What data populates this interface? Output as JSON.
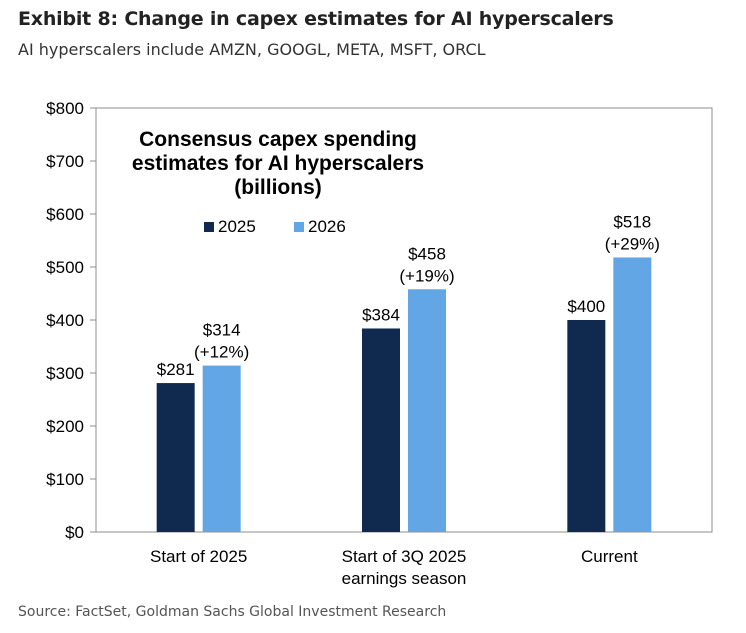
{
  "header": {
    "title": "Exhibit 8: Change in capex estimates for AI hyperscalers",
    "subtitle": "AI hyperscalers include AMZN, GOOGL, META, MSFT, ORCL"
  },
  "footer": {
    "source": "Source: FactSet, Goldman Sachs Global Investment Research"
  },
  "chart_data": {
    "type": "bar",
    "title": "Consensus capex spending estimates for AI hyperscalers (billions)",
    "title_lines": [
      "Consensus capex spending",
      "estimates for AI hyperscalers",
      "(billions)"
    ],
    "categories": [
      "Start of 2025",
      "Start of 3Q 2025 earnings season",
      "Current"
    ],
    "category_lines": [
      [
        "Start of 2025"
      ],
      [
        "Start of 3Q 2025",
        "earnings season"
      ],
      [
        "Current"
      ]
    ],
    "series": [
      {
        "name": "2025",
        "color": "#10294f",
        "values": [
          281,
          384,
          400
        ],
        "labels": [
          [
            "$281"
          ],
          [
            "$384"
          ],
          [
            "$400"
          ]
        ]
      },
      {
        "name": "2026",
        "color": "#63a6e6",
        "values": [
          314,
          458,
          518
        ],
        "labels": [
          [
            "$314",
            "(+12%)"
          ],
          [
            "$458",
            "(+19%)"
          ],
          [
            "$518",
            "(+29%)"
          ]
        ]
      }
    ],
    "ylim": [
      0,
      800
    ],
    "yticks": [
      0,
      100,
      200,
      300,
      400,
      500,
      600,
      700,
      800
    ],
    "ytick_labels": [
      "$0",
      "$100",
      "$200",
      "$300",
      "$400",
      "$500",
      "$600",
      "$700",
      "$800"
    ],
    "xlabel": "",
    "ylabel": "",
    "legend_position": "top-left",
    "grid": false
  }
}
